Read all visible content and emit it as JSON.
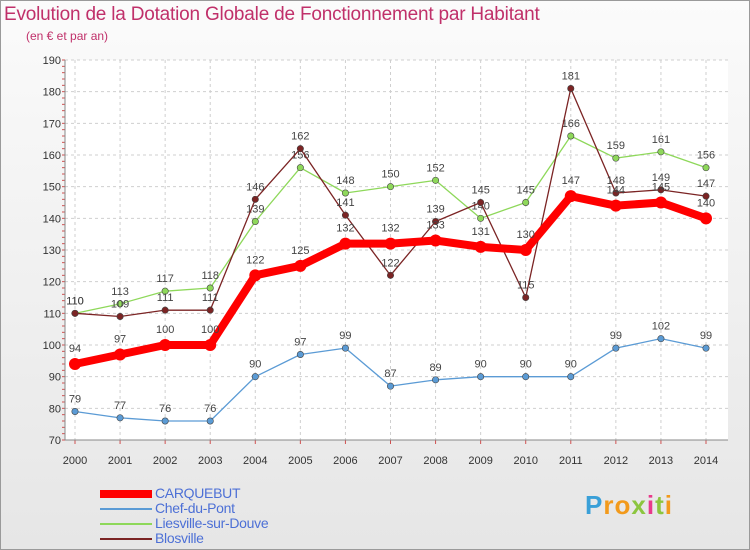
{
  "chart_data": {
    "type": "line",
    "title": "Evolution de la Dotation Globale de Fonctionnement par Habitant",
    "subtitle": "(en € et par an)",
    "xlabel": "",
    "ylabel": "",
    "ylim": [
      70,
      190
    ],
    "y_ticks": [
      70,
      80,
      90,
      100,
      110,
      120,
      130,
      140,
      150,
      160,
      170,
      180,
      190
    ],
    "grid": true,
    "categories": [
      "2000",
      "2001",
      "2002",
      "2003",
      "2004",
      "2005",
      "2006",
      "2007",
      "2008",
      "2009",
      "2010",
      "2011",
      "2012",
      "2013",
      "2014"
    ],
    "series": [
      {
        "name": "CARQUEBUT",
        "color": "#ff0000",
        "values": [
          94,
          97,
          100,
          100,
          122,
          125,
          132,
          132,
          133,
          131,
          130,
          147,
          144,
          145,
          140
        ]
      },
      {
        "name": "Chef-du-Pont",
        "color": "#5b9bd5",
        "values": [
          79,
          77,
          76,
          76,
          90,
          97,
          99,
          87,
          89,
          90,
          90,
          90,
          99,
          102,
          99
        ]
      },
      {
        "name": "Liesville-sur-Douve",
        "color": "#8ed85a",
        "values": [
          110,
          113,
          117,
          118,
          139,
          156,
          148,
          150,
          152,
          140,
          145,
          166,
          159,
          161,
          156
        ]
      },
      {
        "name": "Blosville",
        "color": "#7b2424",
        "values": [
          110,
          109,
          111,
          111,
          146,
          162,
          141,
          122,
          139,
          145,
          115,
          181,
          148,
          149,
          147
        ]
      }
    ]
  },
  "brand": {
    "letters": [
      "P",
      "r",
      "o",
      "x",
      "i",
      "t",
      "i"
    ],
    "colors": [
      "#3aa0d8",
      "#f29a1c",
      "#f29a1c",
      "#8cc63f",
      "#e83a8b",
      "#8cc63f",
      "#f29a1c"
    ]
  }
}
